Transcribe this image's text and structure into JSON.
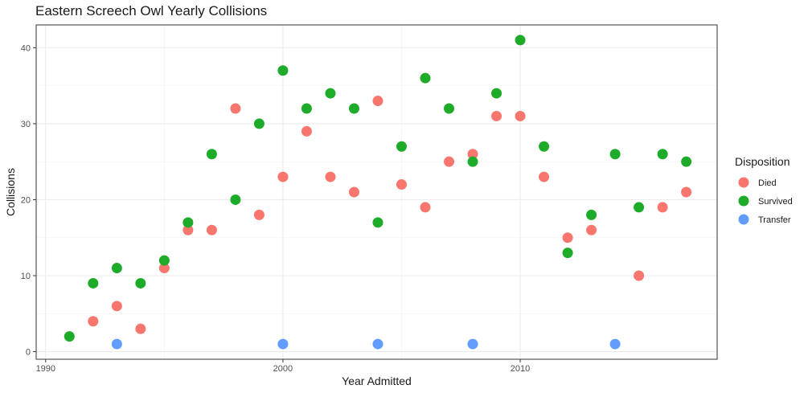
{
  "chart_data": {
    "type": "scatter",
    "title": "Eastern Screech Owl Yearly Collisions",
    "xlabel": "Year Admitted",
    "ylabel": "Collisions",
    "xlim": [
      1989.6,
      2018.3
    ],
    "ylim": [
      -1.0,
      43.0
    ],
    "x_ticks": [
      1990,
      2000,
      2010
    ],
    "x_tick_labels": [
      "1990",
      "2000",
      "2010"
    ],
    "y_ticks": [
      0,
      10,
      20,
      30,
      40
    ],
    "y_tick_labels": [
      "0",
      "10",
      "20",
      "30",
      "40"
    ],
    "grid": true,
    "legend_title": "Disposition",
    "legend_position": "right",
    "series": [
      {
        "name": "Died",
        "color": "#F8766D",
        "points": [
          {
            "x": 1992,
            "y": 4
          },
          {
            "x": 1993,
            "y": 6
          },
          {
            "x": 1994,
            "y": 3
          },
          {
            "x": 1995,
            "y": 11
          },
          {
            "x": 1996,
            "y": 16
          },
          {
            "x": 1997,
            "y": 16
          },
          {
            "x": 1998,
            "y": 32
          },
          {
            "x": 1999,
            "y": 18
          },
          {
            "x": 2000,
            "y": 23
          },
          {
            "x": 2001,
            "y": 29
          },
          {
            "x": 2002,
            "y": 23
          },
          {
            "x": 2003,
            "y": 21
          },
          {
            "x": 2004,
            "y": 33
          },
          {
            "x": 2005,
            "y": 22
          },
          {
            "x": 2006,
            "y": 19
          },
          {
            "x": 2007,
            "y": 25
          },
          {
            "x": 2008,
            "y": 26
          },
          {
            "x": 2009,
            "y": 31
          },
          {
            "x": 2010,
            "y": 31
          },
          {
            "x": 2011,
            "y": 23
          },
          {
            "x": 2012,
            "y": 15
          },
          {
            "x": 2013,
            "y": 16
          },
          {
            "x": 2015,
            "y": 10
          },
          {
            "x": 2016,
            "y": 19
          },
          {
            "x": 2017,
            "y": 21
          }
        ]
      },
      {
        "name": "Survived",
        "color": "#1EAB2A",
        "points": [
          {
            "x": 1991,
            "y": 2
          },
          {
            "x": 1992,
            "y": 9
          },
          {
            "x": 1993,
            "y": 11
          },
          {
            "x": 1994,
            "y": 9
          },
          {
            "x": 1995,
            "y": 12
          },
          {
            "x": 1996,
            "y": 17
          },
          {
            "x": 1997,
            "y": 26
          },
          {
            "x": 1998,
            "y": 20
          },
          {
            "x": 1999,
            "y": 30
          },
          {
            "x": 2000,
            "y": 37
          },
          {
            "x": 2001,
            "y": 32
          },
          {
            "x": 2002,
            "y": 34
          },
          {
            "x": 2003,
            "y": 32
          },
          {
            "x": 2004,
            "y": 17
          },
          {
            "x": 2005,
            "y": 27
          },
          {
            "x": 2006,
            "y": 36
          },
          {
            "x": 2007,
            "y": 32
          },
          {
            "x": 2008,
            "y": 25
          },
          {
            "x": 2009,
            "y": 34
          },
          {
            "x": 2010,
            "y": 41
          },
          {
            "x": 2011,
            "y": 27
          },
          {
            "x": 2012,
            "y": 13
          },
          {
            "x": 2013,
            "y": 18
          },
          {
            "x": 2014,
            "y": 26
          },
          {
            "x": 2015,
            "y": 19
          },
          {
            "x": 2016,
            "y": 26
          },
          {
            "x": 2017,
            "y": 25
          }
        ]
      },
      {
        "name": "Transfer",
        "color": "#619CFF",
        "points": [
          {
            "x": 1993,
            "y": 1
          },
          {
            "x": 2000,
            "y": 1
          },
          {
            "x": 2004,
            "y": 1
          },
          {
            "x": 2008,
            "y": 1
          },
          {
            "x": 2014,
            "y": 1
          }
        ]
      }
    ]
  }
}
